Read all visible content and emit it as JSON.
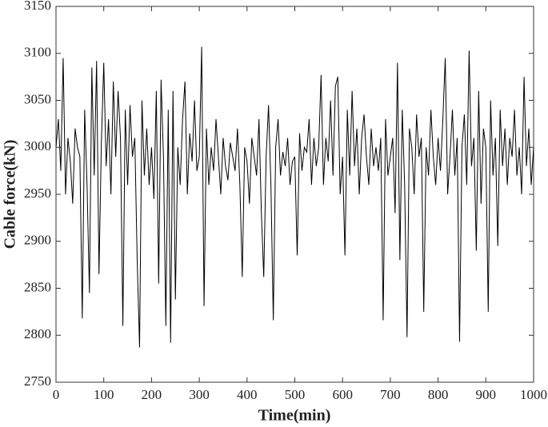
{
  "chart_data": {
    "type": "line",
    "xlabel": "Time(min)",
    "ylabel": "Cable force(kN)",
    "xlim": [
      0,
      1000
    ],
    "xticks": [
      0,
      100,
      200,
      300,
      400,
      500,
      600,
      700,
      800,
      900,
      1000
    ],
    "ylim": [
      2750,
      3150
    ],
    "yticks": [
      2750,
      2800,
      2850,
      2900,
      2950,
      3000,
      3050,
      3100,
      3150
    ],
    "series": [
      {
        "color": "#000000",
        "x": [
          0,
          5,
          10,
          15,
          20,
          25,
          30,
          35,
          40,
          45,
          50,
          55,
          60,
          65,
          70,
          75,
          80,
          85,
          90,
          95,
          100,
          105,
          110,
          115,
          120,
          125,
          130,
          135,
          140,
          145,
          150,
          155,
          160,
          165,
          170,
          175,
          180,
          185,
          190,
          195,
          200,
          205,
          210,
          215,
          220,
          225,
          230,
          235,
          240,
          245,
          250,
          255,
          260,
          265,
          270,
          275,
          280,
          285,
          290,
          295,
          300,
          305,
          310,
          315,
          320,
          325,
          330,
          335,
          340,
          345,
          350,
          355,
          360,
          365,
          370,
          375,
          380,
          385,
          390,
          395,
          400,
          405,
          410,
          415,
          420,
          425,
          430,
          435,
          440,
          445,
          450,
          455,
          460,
          465,
          470,
          475,
          480,
          485,
          490,
          495,
          500,
          505,
          510,
          515,
          520,
          525,
          530,
          535,
          540,
          545,
          550,
          555,
          560,
          565,
          570,
          575,
          580,
          585,
          590,
          595,
          600,
          605,
          610,
          615,
          620,
          625,
          630,
          635,
          640,
          645,
          650,
          655,
          660,
          665,
          670,
          675,
          680,
          685,
          690,
          695,
          700,
          705,
          710,
          715,
          720,
          725,
          730,
          735,
          740,
          745,
          750,
          755,
          760,
          765,
          770,
          775,
          780,
          785,
          790,
          795,
          800,
          805,
          810,
          815,
          820,
          825,
          830,
          835,
          840,
          845,
          850,
          855,
          860,
          865,
          870,
          875,
          880,
          885,
          890,
          895,
          900,
          905,
          910,
          915,
          920,
          925,
          930,
          935,
          940,
          945,
          950,
          955,
          960,
          965,
          970,
          975,
          980,
          985,
          990,
          995,
          1000
        ],
        "values": [
          3000,
          3030,
          2975,
          3095,
          2950,
          3010,
          2985,
          2940,
          3020,
          3000,
          2990,
          2818,
          3040,
          2960,
          2845,
          3085,
          2970,
          3092,
          2865,
          3005,
          3090,
          2980,
          3030,
          2950,
          3070,
          2990,
          3060,
          3010,
          2810,
          3040,
          2960,
          3045,
          2990,
          3010,
          2880,
          2787,
          3050,
          2970,
          3020,
          2960,
          3000,
          2945,
          3060,
          2855,
          3072,
          2990,
          2810,
          3040,
          2792,
          3060,
          2838,
          3000,
          2960,
          3030,
          3070,
          2950,
          3015,
          2985,
          3050,
          2975,
          2990,
          3107,
          2831,
          3020,
          2960,
          3000,
          2975,
          3030,
          2990,
          2950,
          3010,
          2980,
          2965,
          3005,
          2990,
          2975,
          3020,
          2960,
          2862,
          3000,
          2985,
          2940,
          3010,
          2990,
          2970,
          3030,
          2930,
          2862,
          2990,
          3045,
          2960,
          2816,
          3000,
          3030,
          2970,
          2995,
          2980,
          3010,
          2960,
          2985,
          2990,
          2885,
          3015,
          2975,
          3000,
          2995,
          3030,
          2960,
          3010,
          2980,
          3000,
          3077,
          2960,
          3010,
          2985,
          3050,
          2970,
          3065,
          3075,
          2950,
          2990,
          2885,
          3040,
          2970,
          3060,
          2980,
          3020,
          2950,
          3010,
          3035,
          2990,
          2960,
          3020,
          2980,
          3000,
          2975,
          3010,
          2816,
          3030,
          2970,
          2990,
          3010,
          2930,
          3090,
          2880,
          3040,
          2960,
          2798,
          3020,
          3000,
          2950,
          3035,
          2990,
          3010,
          2825,
          3000,
          2970,
          3040,
          2990,
          2960,
          3010,
          2975,
          3030,
          3095,
          2950,
          2990,
          3040,
          2970,
          3010,
          2793,
          3000,
          3035,
          2960,
          3103,
          2980,
          3010,
          2890,
          3060,
          2940,
          3020,
          3000,
          2825,
          3050,
          2970,
          3010,
          2895,
          3040,
          2980,
          3020,
          2960,
          3010,
          2990,
          3040,
          2970,
          3000,
          2950,
          3075,
          2980,
          3020,
          2960,
          3000
        ]
      }
    ]
  }
}
